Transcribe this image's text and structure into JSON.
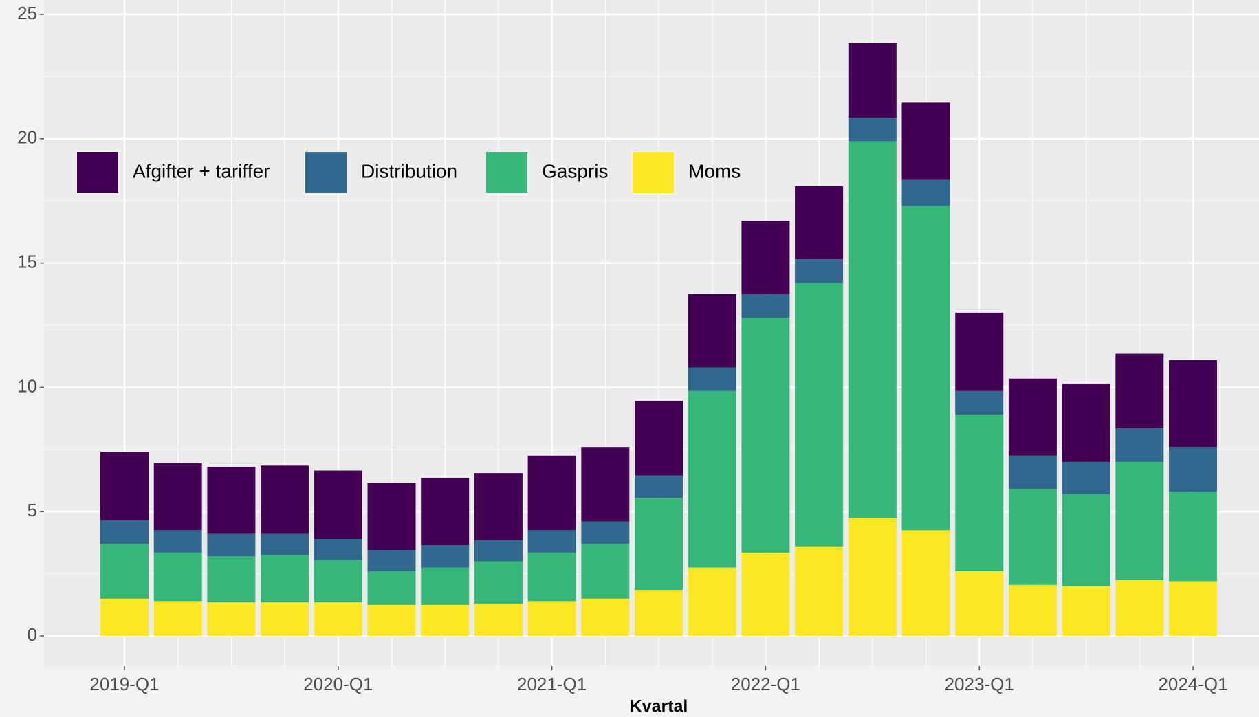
{
  "chart_data": {
    "type": "stacked_bar",
    "x_label": "Kvartal",
    "categories": [
      "2019-Q1",
      null,
      null,
      null,
      "2020-Q1",
      null,
      null,
      null,
      "2021-Q1",
      null,
      null,
      null,
      "2022-Q1",
      null,
      null,
      null,
      "2023-Q1",
      null,
      null,
      null,
      "2024-Q1"
    ],
    "series": [
      {
        "name": "Afgifter + tariffer",
        "color": "#440154",
        "values": [
          2.75,
          2.7,
          2.7,
          2.75,
          2.75,
          2.7,
          2.7,
          2.7,
          3.0,
          3.0,
          3.0,
          2.95,
          2.95,
          2.95,
          3.0,
          3.1,
          3.15,
          3.1,
          3.15,
          3.0,
          3.5
        ]
      },
      {
        "name": "Distribution",
        "color": "#31688e",
        "values": [
          0.95,
          0.9,
          0.9,
          0.85,
          0.85,
          0.85,
          0.9,
          0.85,
          0.9,
          0.9,
          0.9,
          0.95,
          0.95,
          0.95,
          0.95,
          1.05,
          0.95,
          1.35,
          1.3,
          1.35,
          1.8
        ]
      },
      {
        "name": "Gaspris",
        "color": "#35b779",
        "values": [
          2.2,
          1.95,
          1.85,
          1.9,
          1.7,
          1.35,
          1.5,
          1.7,
          1.95,
          2.2,
          3.7,
          7.1,
          9.45,
          10.6,
          15.15,
          13.05,
          6.3,
          3.85,
          3.7,
          4.75,
          3.6
        ]
      },
      {
        "name": "Moms",
        "color": "#fde725",
        "values": [
          1.5,
          1.4,
          1.35,
          1.35,
          1.35,
          1.25,
          1.25,
          1.3,
          1.4,
          1.5,
          1.85,
          2.75,
          3.35,
          3.6,
          4.75,
          4.25,
          2.6,
          2.05,
          2.0,
          2.25,
          2.2
        ]
      }
    ],
    "ylim": [
      0,
      25
    ],
    "yticks": [
      0,
      5,
      10,
      15,
      20,
      25
    ],
    "grid": true,
    "legend_position": "top-left"
  }
}
